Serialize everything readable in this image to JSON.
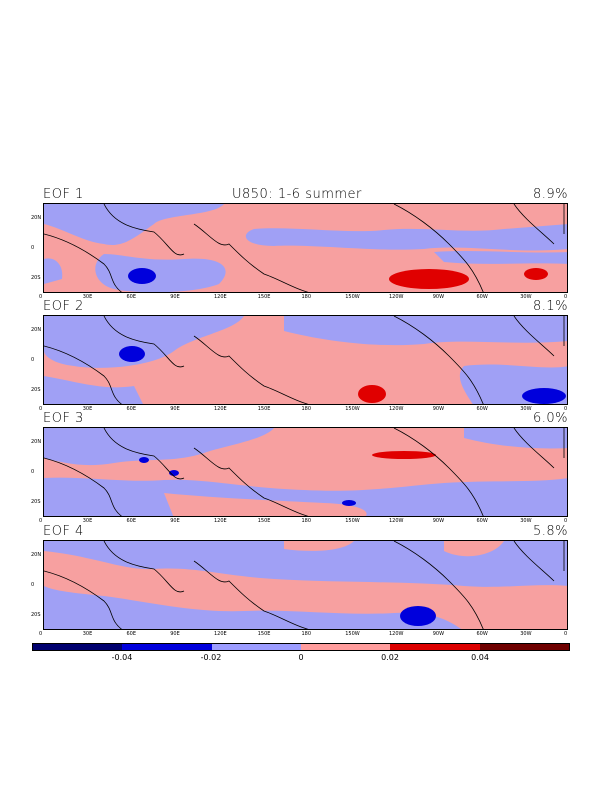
{
  "figure": {
    "title": "U850: 1-6 summer",
    "panels": [
      {
        "label": "EOF 1",
        "variance": "8.9%"
      },
      {
        "label": "EOF 2",
        "variance": "8.1%"
      },
      {
        "label": "EOF 3",
        "variance": "6.0%"
      },
      {
        "label": "EOF 4",
        "variance": "5.8%"
      }
    ],
    "lon_ticks": [
      "0",
      "30E",
      "60E",
      "90E",
      "120E",
      "150E",
      "180",
      "150W",
      "120W",
      "90W",
      "60W",
      "30W",
      "0"
    ],
    "lat_ticks": [
      "20N",
      "0",
      "20S"
    ]
  },
  "colorbar": {
    "colors": [
      "#00006e",
      "#0000dc",
      "#9c9cff",
      "#ff9c9c",
      "#dc0000",
      "#6e0000"
    ],
    "labels": [
      "-0.04",
      "-0.02",
      "0",
      "0.02",
      "0.04"
    ]
  },
  "colors": {
    "positive_fill": "#f7a0a0",
    "negative_fill": "#a0a0f5",
    "strong_positive": "#e00000",
    "strong_negative": "#0000dc",
    "coastline": "#000000"
  }
}
